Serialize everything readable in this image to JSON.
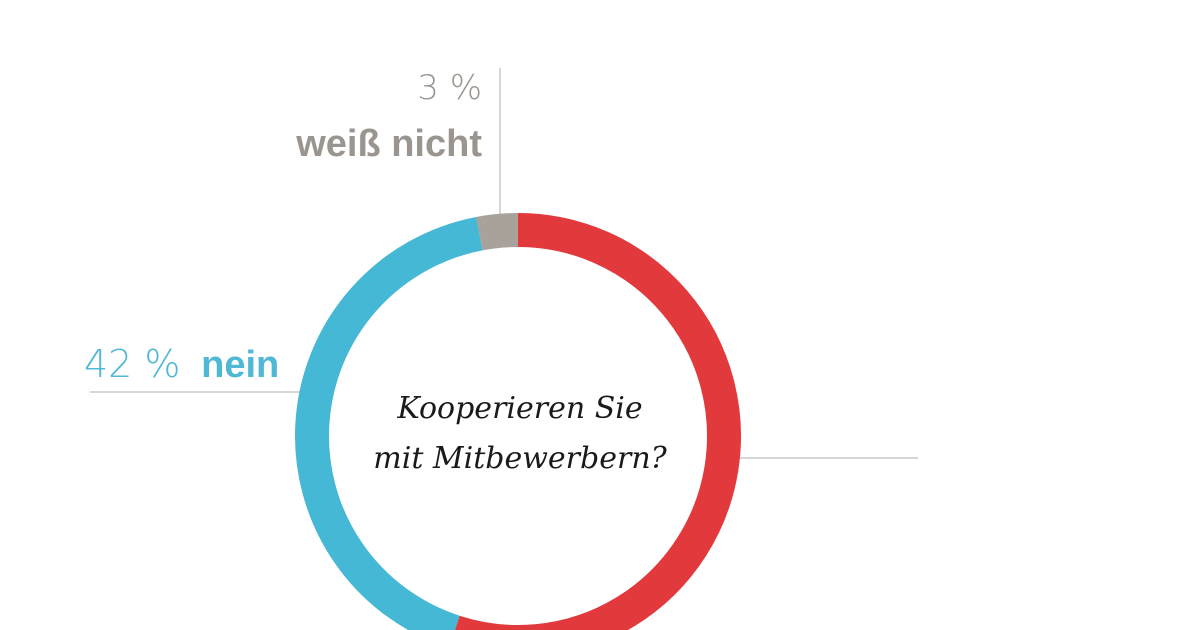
{
  "chart_data": {
    "type": "pie",
    "style": "donut",
    "title": "Kooperieren Sie mit Mitbewerbern?",
    "title_lines": [
      "Kooperieren Sie",
      "mit Mitbewerbern?"
    ],
    "slices": [
      {
        "key": "ja",
        "value": 55,
        "color": "#e23a3c"
      },
      {
        "key": "nein",
        "label": "nein",
        "percent_text": "42 %",
        "value": 42,
        "color": "#44b8d4"
      },
      {
        "key": "weiss_nicht",
        "label": "weiß nicht",
        "percent_text": "3 %",
        "value": 3,
        "color": "#a8a29a"
      }
    ]
  },
  "colors": {
    "ja": "#e23a3c",
    "nein": "#44b8d4",
    "weiss_nicht": "#a8a29a",
    "nein_text": "#4fb8d4",
    "weiss_nicht_text": "#9a958f",
    "leader_line": "#c9c9c9"
  }
}
